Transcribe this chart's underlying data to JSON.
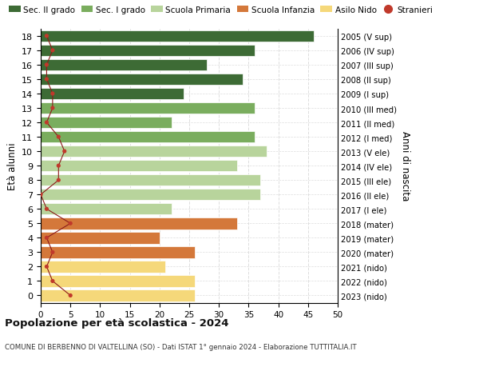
{
  "ages": [
    18,
    17,
    16,
    15,
    14,
    13,
    12,
    11,
    10,
    9,
    8,
    7,
    6,
    5,
    4,
    3,
    2,
    1,
    0
  ],
  "years": [
    "2005 (V sup)",
    "2006 (IV sup)",
    "2007 (III sup)",
    "2008 (II sup)",
    "2009 (I sup)",
    "2010 (III med)",
    "2011 (II med)",
    "2012 (I med)",
    "2013 (V ele)",
    "2014 (IV ele)",
    "2015 (III ele)",
    "2016 (II ele)",
    "2017 (I ele)",
    "2018 (mater)",
    "2019 (mater)",
    "2020 (mater)",
    "2021 (nido)",
    "2022 (nido)",
    "2023 (nido)"
  ],
  "bar_values": [
    46,
    36,
    28,
    34,
    24,
    36,
    22,
    36,
    38,
    33,
    37,
    37,
    22,
    33,
    20,
    26,
    21,
    26,
    26
  ],
  "bar_colors": [
    "#3d6b35",
    "#3d6b35",
    "#3d6b35",
    "#3d6b35",
    "#3d6b35",
    "#7aad5e",
    "#7aad5e",
    "#7aad5e",
    "#b8d49c",
    "#b8d49c",
    "#b8d49c",
    "#b8d49c",
    "#b8d49c",
    "#d4783a",
    "#d4783a",
    "#d4783a",
    "#f5d87a",
    "#f5d87a",
    "#f5d87a"
  ],
  "stranieri_values": [
    1,
    2,
    1,
    1,
    2,
    2,
    1,
    3,
    4,
    3,
    3,
    0,
    1,
    5,
    1,
    2,
    1,
    2,
    5
  ],
  "legend_labels": [
    "Sec. II grado",
    "Sec. I grado",
    "Scuola Primaria",
    "Scuola Infanzia",
    "Asilo Nido",
    "Stranieri"
  ],
  "legend_colors": [
    "#3d6b35",
    "#7aad5e",
    "#b8d49c",
    "#d4783a",
    "#f5d87a",
    "#c0392b"
  ],
  "ylabel_left": "Età alunni",
  "ylabel_right": "Anni di nascita",
  "xlim": [
    0,
    50
  ],
  "xticks": [
    0,
    5,
    10,
    15,
    20,
    25,
    30,
    35,
    40,
    45,
    50
  ],
  "title": "Popolazione per età scolastica - 2024",
  "subtitle": "COMUNE DI BERBENNO DI VALTELLINA (SO) - Dati ISTAT 1° gennaio 2024 - Elaborazione TUTTITALIA.IT",
  "background_color": "#ffffff",
  "grid_color": "#dddddd",
  "stranieri_color": "#c0392b",
  "stranieri_line_color": "#8b1a1a"
}
